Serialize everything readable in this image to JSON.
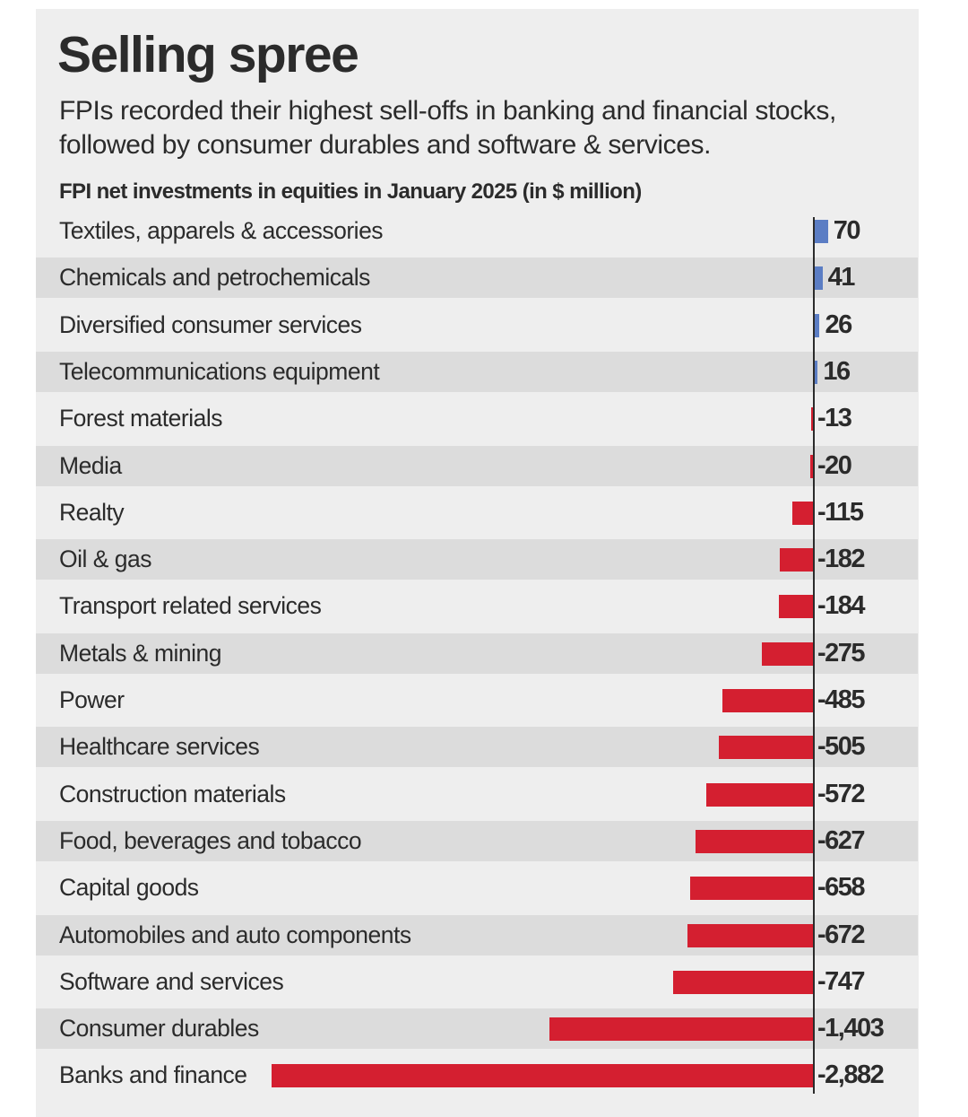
{
  "header": {
    "title": "Selling spree",
    "subtitle": "FPIs recorded their highest sell-offs in banking and financial stocks, followed by consumer durables and software & services.",
    "chart_title": "FPI net investments in equities in January 2025 (in $ million)"
  },
  "colors": {
    "positive": "#5b7dc4",
    "negative": "#d41f30",
    "background": "#eeeeee",
    "stripe": "#dcdcdc",
    "text": "#2b2b2b"
  },
  "chart_data": {
    "type": "bar",
    "orientation": "horizontal",
    "title": "FPI net investments in equities in January 2025 (in $ million)",
    "xlabel": "",
    "ylabel": "",
    "grid": false,
    "xlim": [
      -2882,
      70
    ],
    "categories": [
      "Textiles, apparels & accessories",
      "Chemicals and petrochemicals",
      "Diversified consumer services",
      "Telecommunications equipment",
      "Forest materials",
      "Media",
      "Realty",
      "Oil & gas",
      "Transport related services",
      "Metals & mining",
      "Power",
      "Healthcare services",
      "Construction materials",
      "Food, beverages and tobacco",
      "Capital goods",
      "Automobiles and auto components",
      "Software and services",
      "Consumer durables",
      "Banks and finance"
    ],
    "values": [
      70,
      41,
      26,
      16,
      -13,
      -20,
      -115,
      -182,
      -184,
      -275,
      -485,
      -505,
      -572,
      -627,
      -658,
      -672,
      -747,
      -1403,
      -2882
    ],
    "data_labels": [
      "70",
      "41",
      "26",
      "16",
      "-13",
      "-20",
      "-115",
      "-182",
      "-184",
      "-275",
      "-485",
      "-505",
      "-572",
      "-627",
      "-658",
      "-672",
      "-747",
      "-1,403",
      "-2,882"
    ]
  }
}
